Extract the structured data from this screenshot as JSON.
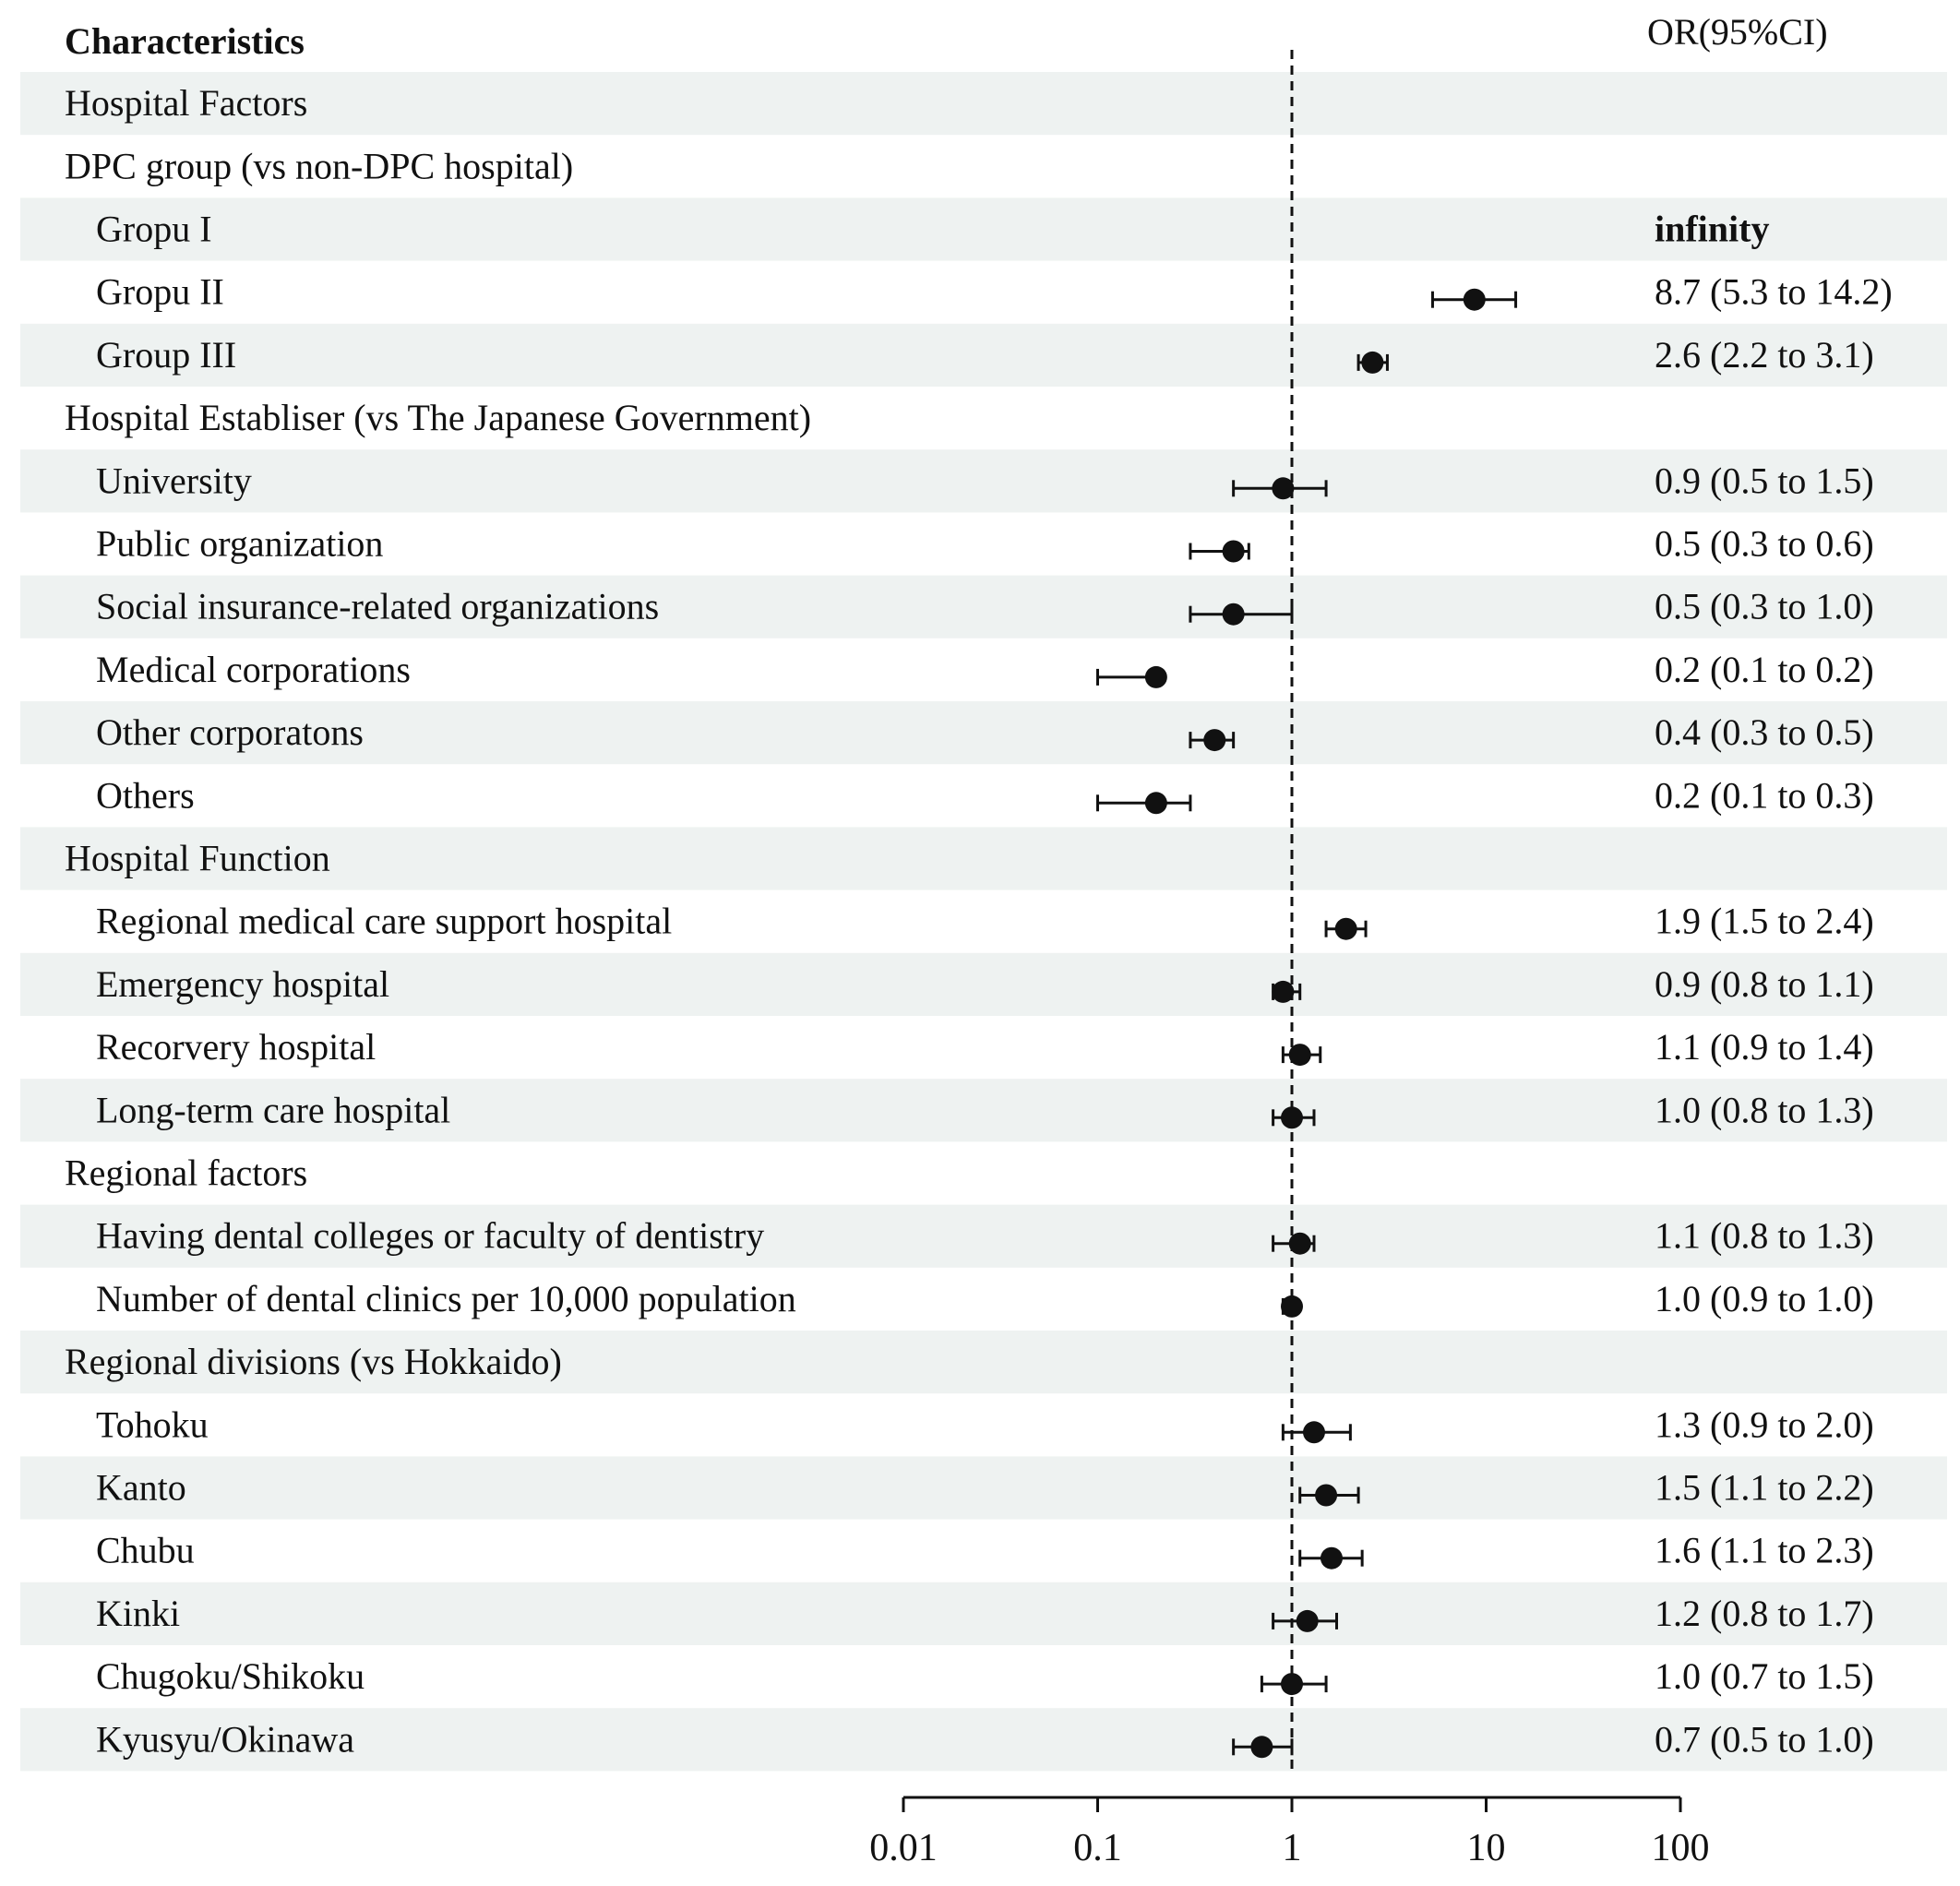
{
  "chart_data": {
    "type": "forest",
    "header_label": "Characteristics",
    "header_or": "OR(95%CI)",
    "x_scale": "log10",
    "xlim": [
      0.01,
      100
    ],
    "reference_line": 1,
    "x_ticks": [
      "0.01",
      "0.1",
      "1",
      "10",
      "100"
    ],
    "x_tick_values": [
      0.01,
      0.1,
      1,
      10,
      100
    ],
    "colors": {
      "band": "#eef2f1",
      "ink": "#111111"
    },
    "rows": [
      {
        "label": "Hospital Factors",
        "level": 0,
        "shaded": true
      },
      {
        "label": "DPC group (vs non-DPC hospital)",
        "level": 0,
        "shaded": false
      },
      {
        "label": "Gropu I",
        "level": 1,
        "shaded": true,
        "or_text": "infinity",
        "or_bold": true
      },
      {
        "label": "Gropu II",
        "level": 1,
        "shaded": false,
        "or": 8.7,
        "lo": 5.3,
        "hi": 14.2,
        "or_text": "8.7 (5.3 to 14.2)"
      },
      {
        "label": "Group III",
        "level": 1,
        "shaded": true,
        "or": 2.6,
        "lo": 2.2,
        "hi": 3.1,
        "or_text": "2.6 (2.2 to 3.1)"
      },
      {
        "label": "Hospital Establiser (vs The Japanese Government)",
        "level": 0,
        "shaded": false
      },
      {
        "label": "University",
        "level": 1,
        "shaded": true,
        "or": 0.9,
        "lo": 0.5,
        "hi": 1.5,
        "or_text": "0.9 (0.5 to 1.5)"
      },
      {
        "label": "Public organization",
        "level": 1,
        "shaded": false,
        "or": 0.5,
        "lo": 0.3,
        "hi": 0.6,
        "or_text": "0.5 (0.3 to 0.6)"
      },
      {
        "label": "Social insurance-related organizations",
        "level": 1,
        "shaded": true,
        "or": 0.5,
        "lo": 0.3,
        "hi": 1.0,
        "or_text": "0.5 (0.3 to 1.0)"
      },
      {
        "label": "Medical corporations",
        "level": 1,
        "shaded": false,
        "or": 0.2,
        "lo": 0.1,
        "hi": 0.2,
        "or_text": "0.2 (0.1 to 0.2)"
      },
      {
        "label": "Other corporatons",
        "level": 1,
        "shaded": true,
        "or": 0.4,
        "lo": 0.3,
        "hi": 0.5,
        "or_text": "0.4 (0.3 to 0.5)"
      },
      {
        "label": "Others",
        "level": 1,
        "shaded": false,
        "or": 0.2,
        "lo": 0.1,
        "hi": 0.3,
        "or_text": "0.2 (0.1 to 0.3)"
      },
      {
        "label": "Hospital Function",
        "level": 0,
        "shaded": true
      },
      {
        "label": "Regional medical care support hospital",
        "level": 1,
        "shaded": false,
        "or": 1.9,
        "lo": 1.5,
        "hi": 2.4,
        "or_text": "1.9 (1.5 to 2.4)"
      },
      {
        "label": "Emergency hospital",
        "level": 1,
        "shaded": true,
        "or": 0.9,
        "lo": 0.8,
        "hi": 1.1,
        "or_text": "0.9 (0.8 to 1.1)"
      },
      {
        "label": "Recorvery hospital",
        "level": 1,
        "shaded": false,
        "or": 1.1,
        "lo": 0.9,
        "hi": 1.4,
        "or_text": "1.1 (0.9 to 1.4)"
      },
      {
        "label": "Long-term care hospital",
        "level": 1,
        "shaded": true,
        "or": 1.0,
        "lo": 0.8,
        "hi": 1.3,
        "or_text": "1.0 (0.8 to 1.3)"
      },
      {
        "label": "Regional factors",
        "level": 0,
        "shaded": false
      },
      {
        "label": "Having dental colleges or faculty of dentistry",
        "level": 1,
        "shaded": true,
        "or": 1.1,
        "lo": 0.8,
        "hi": 1.3,
        "or_text": "1.1 (0.8 to 1.3)"
      },
      {
        "label": "Number of dental clinics per 10,000 population",
        "level": 1,
        "shaded": false,
        "or": 1.0,
        "lo": 0.9,
        "hi": 1.0,
        "or_text": "1.0 (0.9 to 1.0)"
      },
      {
        "label": "Regional divisions (vs Hokkaido)",
        "level": 0,
        "shaded": true
      },
      {
        "label": "Tohoku",
        "level": 1,
        "shaded": false,
        "or": 1.3,
        "lo": 0.9,
        "hi": 2.0,
        "or_text": "1.3 (0.9 to 2.0)"
      },
      {
        "label": "Kanto",
        "level": 1,
        "shaded": true,
        "or": 1.5,
        "lo": 1.1,
        "hi": 2.2,
        "or_text": "1.5 (1.1 to 2.2)"
      },
      {
        "label": "Chubu",
        "level": 1,
        "shaded": false,
        "or": 1.6,
        "lo": 1.1,
        "hi": 2.3,
        "or_text": "1.6 (1.1 to 2.3)"
      },
      {
        "label": "Kinki",
        "level": 1,
        "shaded": true,
        "or": 1.2,
        "lo": 0.8,
        "hi": 1.7,
        "or_text": "1.2 (0.8 to 1.7)"
      },
      {
        "label": "Chugoku/Shikoku",
        "level": 1,
        "shaded": false,
        "or": 1.0,
        "lo": 0.7,
        "hi": 1.5,
        "or_text": "1.0 (0.7 to 1.5)"
      },
      {
        "label": "Kyusyu/Okinawa",
        "level": 1,
        "shaded": true,
        "or": 0.7,
        "lo": 0.5,
        "hi": 1.0,
        "or_text": "0.7 (0.5 to 1.0)"
      }
    ]
  }
}
